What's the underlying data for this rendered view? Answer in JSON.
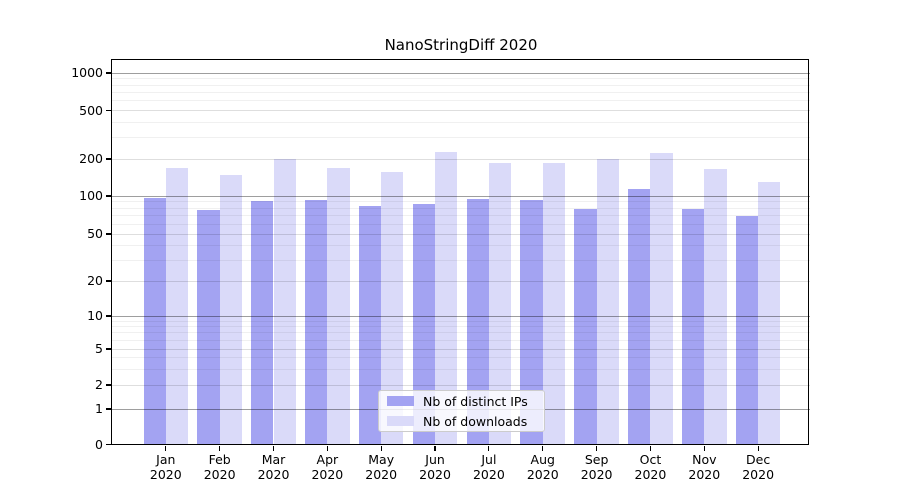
{
  "title": "NanoStringDiff 2020",
  "colors": {
    "bar_distinct_ips": "#a3a3f2",
    "bar_downloads": "#dadaf9",
    "grid_major": "rgba(0,0,0,0.38)",
    "grid_mid": "rgba(0,0,0,0.13)",
    "grid_minor": "rgba(0,0,0,0.06)",
    "axis": "#000000",
    "legend_border": "#cccccc"
  },
  "chart_data": {
    "type": "bar",
    "title": "NanoStringDiff 2020",
    "categories": [
      "Jan",
      "Feb",
      "Mar",
      "Apr",
      "May",
      "Jun",
      "Jul",
      "Aug",
      "Sep",
      "Oct",
      "Nov",
      "Dec"
    ],
    "category_year": "2020",
    "series": [
      {
        "name": "Nb of distinct IPs",
        "color": "#a3a3f2",
        "values": [
          97,
          77,
          92,
          93,
          84,
          87,
          95,
          93,
          79,
          114,
          79,
          70
        ]
      },
      {
        "name": "Nb of downloads",
        "color": "#dadaf9",
        "values": [
          170,
          147,
          200,
          170,
          157,
          229,
          187,
          186,
          201,
          224,
          167,
          131
        ]
      }
    ],
    "ytick_labels": [
      "0",
      "1",
      "2",
      "5",
      "10",
      "20",
      "50",
      "100",
      "200",
      "500",
      "1000"
    ],
    "xlabel": "",
    "ylabel": "",
    "yscale": "symlog",
    "ylim": [
      0,
      1300
    ],
    "grid": "on",
    "legend_position": "lower center"
  }
}
